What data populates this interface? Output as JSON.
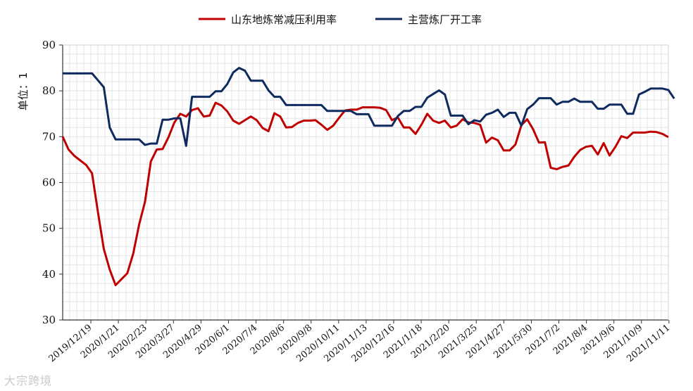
{
  "chart_data": {
    "type": "line",
    "ylabel": "单位：1",
    "ylim": [
      30,
      90
    ],
    "yticks": [
      30,
      40,
      50,
      60,
      70,
      80,
      90
    ],
    "grid": true,
    "legend_position": "top-center",
    "x_tick_labels": [
      "2019/12/19",
      "2020/1/21",
      "2020/2/23",
      "2020/3/27",
      "2020/4/29",
      "2020/6/1",
      "2020/7/4",
      "2020/8/6",
      "2020/9/8",
      "2020/10/11",
      "2020/11/13",
      "2020/12/16",
      "2021/1/18",
      "2021/2/20",
      "2021/3/25",
      "2021/4/27",
      "2021/5/30",
      "2021/7/2",
      "2021/8/4",
      "2021/9/6",
      "2021/10/9",
      "2021/11/11"
    ],
    "series": [
      {
        "name": "山东地炼常减压利用率",
        "color": "#c00000",
        "values": [
          70.0,
          67.2,
          65.8,
          64.8,
          63.8,
          62.0,
          53.5,
          45.5,
          41.0,
          37.6,
          38.9,
          40.2,
          44.5,
          50.8,
          55.8,
          64.6,
          67.2,
          67.3,
          69.9,
          73.1,
          75.0,
          74.4,
          75.8,
          76.2,
          74.4,
          74.6,
          77.4,
          76.8,
          75.5,
          73.5,
          72.8,
          73.6,
          74.4,
          73.6,
          71.9,
          71.2,
          75.1,
          74.4,
          72.0,
          72.1,
          73.0,
          73.5,
          73.5,
          73.6,
          72.6,
          71.5,
          72.4,
          74.1,
          75.7,
          75.9,
          75.9,
          76.4,
          76.4,
          76.4,
          76.3,
          75.8,
          73.6,
          74.2,
          72.0,
          72.0,
          70.6,
          72.6,
          75.0,
          73.5,
          73.0,
          73.5,
          72.0,
          72.4,
          73.8,
          73.1,
          73.0,
          72.6,
          68.7,
          69.8,
          69.2,
          67.0,
          67.0,
          68.3,
          72.5,
          73.8,
          71.6,
          68.7,
          68.8,
          63.2,
          62.9,
          63.4,
          63.7,
          65.6,
          67.1,
          67.8,
          68.0,
          66.1,
          68.6,
          65.9,
          67.8,
          70.1,
          69.7,
          70.9,
          70.9,
          70.9,
          71.1,
          71.0,
          70.6,
          69.9
        ]
      },
      {
        "name": "主营炼厂开工率",
        "color": "#0e2a5e",
        "values": [
          83.8,
          83.8,
          83.8,
          83.8,
          83.8,
          83.8,
          82.3,
          80.8,
          72.0,
          69.4,
          69.4,
          69.4,
          69.4,
          69.4,
          68.2,
          68.5,
          68.5,
          73.7,
          73.7,
          74.0,
          74.0,
          68.0,
          78.7,
          78.7,
          78.7,
          78.7,
          79.9,
          79.9,
          81.5,
          84.0,
          85.0,
          84.4,
          82.2,
          82.2,
          82.2,
          80.1,
          78.7,
          78.7,
          76.9,
          76.9,
          76.9,
          76.9,
          76.9,
          76.9,
          76.9,
          75.6,
          75.6,
          75.6,
          75.6,
          75.6,
          74.9,
          74.9,
          74.9,
          72.4,
          72.4,
          72.4,
          72.4,
          74.5,
          75.6,
          75.6,
          76.5,
          76.5,
          78.5,
          79.3,
          80.1,
          79.2,
          74.6,
          74.6,
          74.6,
          72.7,
          73.6,
          73.3,
          74.8,
          75.2,
          75.9,
          74.3,
          75.2,
          75.2,
          72.4,
          76.0,
          77.0,
          78.4,
          78.4,
          78.4,
          77.0,
          77.6,
          77.6,
          78.3,
          77.6,
          77.6,
          77.6,
          76.1,
          76.1,
          77.0,
          77.0,
          77.0,
          75.0,
          75.0,
          79.2,
          79.8,
          80.5,
          80.5,
          80.5,
          80.2,
          78.3
        ]
      }
    ]
  },
  "watermark": "大宗跨境"
}
